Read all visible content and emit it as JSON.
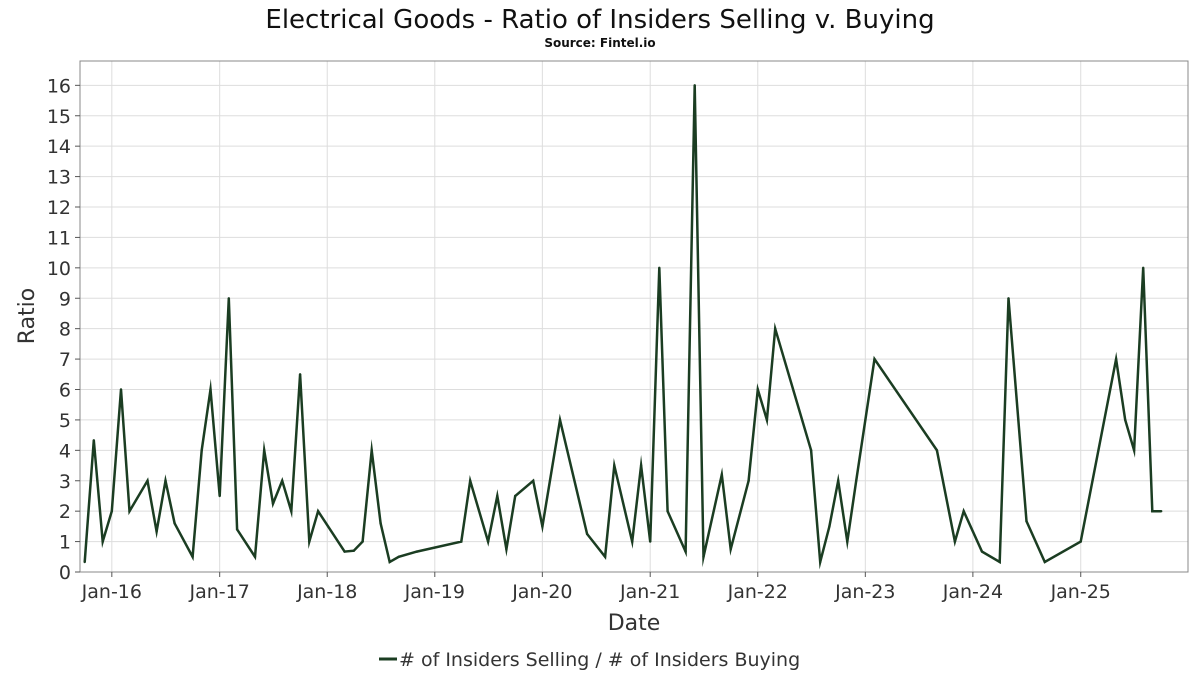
{
  "chart_data": {
    "type": "line",
    "title": "Electrical Goods - Ratio of Insiders Selling v. Buying",
    "subtitle": "Source: Fintel.io",
    "xlabel": "Date",
    "ylabel": "Ratio",
    "ylim": [
      0,
      16.8
    ],
    "yticks": [
      0,
      1,
      2,
      3,
      4,
      5,
      6,
      7,
      8,
      9,
      10,
      11,
      12,
      13,
      14,
      15,
      16
    ],
    "xlim": [
      "2015-09-15",
      "2025-12-31"
    ],
    "xticks": [
      {
        "date": "2016-01-01",
        "label": "Jan-16"
      },
      {
        "date": "2017-01-01",
        "label": "Jan-17"
      },
      {
        "date": "2018-01-01",
        "label": "Jan-18"
      },
      {
        "date": "2019-01-01",
        "label": "Jan-19"
      },
      {
        "date": "2020-01-01",
        "label": "Jan-20"
      },
      {
        "date": "2021-01-01",
        "label": "Jan-21"
      },
      {
        "date": "2022-01-01",
        "label": "Jan-22"
      },
      {
        "date": "2023-01-01",
        "label": "Jan-23"
      },
      {
        "date": "2024-01-01",
        "label": "Jan-24"
      },
      {
        "date": "2025-01-01",
        "label": "Jan-25"
      }
    ],
    "grid": true,
    "legend_position": "bottom-center",
    "series": [
      {
        "name": "# of Insiders Selling / # of Insiders Buying",
        "color": "#1b3d22",
        "x": [
          "2015-10-01",
          "2015-11-01",
          "2015-12-01",
          "2016-01-01",
          "2016-02-01",
          "2016-03-01",
          "2016-05-01",
          "2016-06-01",
          "2016-07-01",
          "2016-08-01",
          "2016-10-01",
          "2016-11-01",
          "2016-12-01",
          "2017-01-01",
          "2017-02-01",
          "2017-03-01",
          "2017-05-01",
          "2017-06-01",
          "2017-07-01",
          "2017-08-01",
          "2017-09-01",
          "2017-10-01",
          "2017-11-01",
          "2017-12-01",
          "2018-03-01",
          "2018-04-01",
          "2018-05-01",
          "2018-06-01",
          "2018-07-01",
          "2018-08-01",
          "2018-09-01",
          "2018-11-01",
          "2019-04-01",
          "2019-05-01",
          "2019-07-01",
          "2019-08-01",
          "2019-09-01",
          "2019-10-01",
          "2019-12-01",
          "2020-01-01",
          "2020-03-01",
          "2020-06-01",
          "2020-08-01",
          "2020-09-01",
          "2020-11-01",
          "2020-12-01",
          "2021-01-01",
          "2021-02-01",
          "2021-03-01",
          "2021-05-01",
          "2021-06-01",
          "2021-07-01",
          "2021-09-01",
          "2021-10-01",
          "2021-12-01",
          "2022-01-01",
          "2022-02-01",
          "2022-03-01",
          "2022-07-01",
          "2022-08-01",
          "2022-09-01",
          "2022-10-01",
          "2022-11-01",
          "2022-12-01",
          "2023-02-01",
          "2023-09-01",
          "2023-11-01",
          "2023-12-01",
          "2024-02-01",
          "2024-04-01",
          "2024-05-01",
          "2024-07-01",
          "2024-09-01",
          "2025-01-01",
          "2025-05-01",
          "2025-06-01",
          "2025-07-01",
          "2025-08-01",
          "2025-09-01",
          "2025-10-01"
        ],
        "values": [
          0.33,
          4.33,
          1,
          2,
          6,
          2,
          3,
          1.33,
          3,
          1.6,
          0.5,
          4,
          6,
          2.5,
          9,
          1.4,
          0.5,
          4,
          2.25,
          3,
          2,
          6.5,
          1,
          2,
          0.67,
          0.7,
          1,
          4,
          1.6,
          0.33,
          0.5,
          0.67,
          1,
          3,
          1,
          2.5,
          0.75,
          2.5,
          3,
          1.5,
          5,
          1.25,
          0.5,
          3.5,
          1,
          3.5,
          1,
          10,
          2,
          0.67,
          16,
          0.5,
          3.2,
          0.75,
          3,
          6,
          5,
          8,
          4,
          0.33,
          1.5,
          3,
          1,
          3,
          7,
          4,
          1,
          2,
          0.67,
          0.33,
          9,
          1.67,
          0.33,
          1,
          7,
          5,
          4,
          10,
          2,
          2
        ]
      }
    ]
  }
}
